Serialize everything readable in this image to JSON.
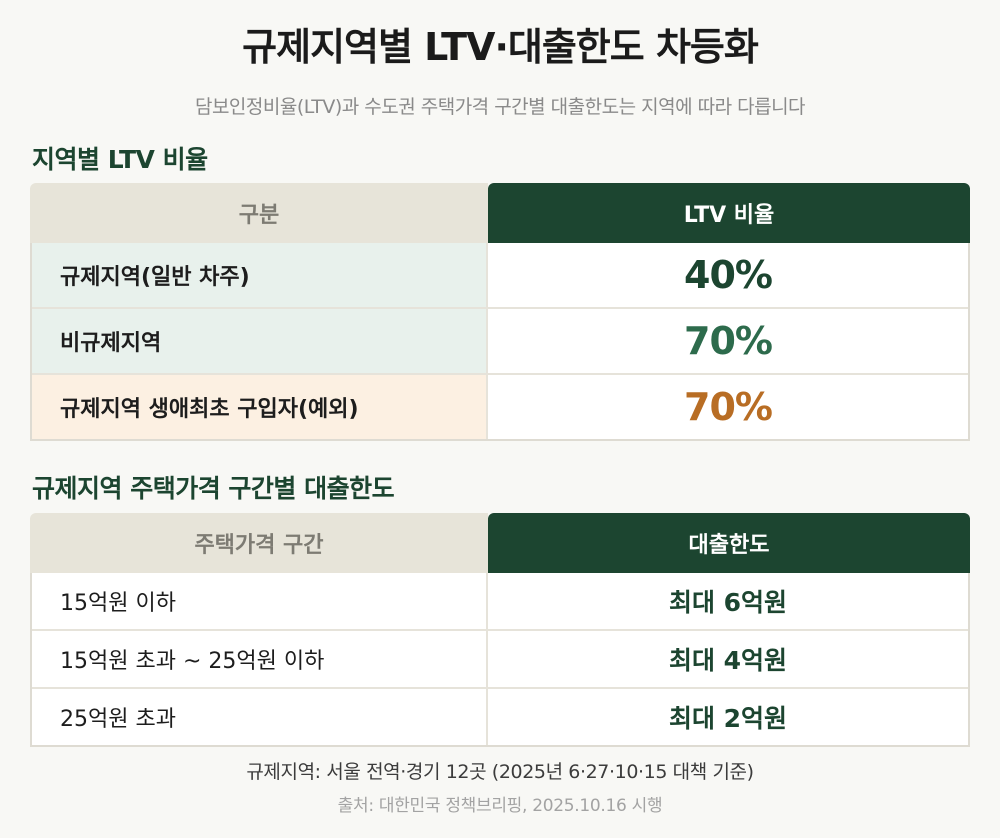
{
  "title": "규제지역별 LTV·대출한도 차등화",
  "subtitle": "담보인정비율(LTV)과 수도권 주택가격 구간별 대출한도는 지역에 따라 다릅니다",
  "ltv_section": {
    "title": "지역별 LTV 비율",
    "headers": [
      "구분",
      "LTV 비율"
    ],
    "rows": [
      {
        "label": "규제지역(일반 차주)",
        "value": "40%"
      },
      {
        "label": "비규제지역",
        "value": "70%"
      },
      {
        "label": "규제지역 생애최초 구입자(예외)",
        "value": "70%"
      }
    ]
  },
  "limit_section": {
    "title": "규제지역 주택가격 구간별 대출한도",
    "headers": [
      "주택가격 구간",
      "대출한도"
    ],
    "rows": [
      {
        "label": "15억원 이하",
        "value": "최대 6억원"
      },
      {
        "label": "15억원 초과 ~ 25억원 이하",
        "value": "최대 4억원"
      },
      {
        "label": "25억원 초과",
        "value": "최대 2억원"
      }
    ]
  },
  "note": "규제지역: 서울 전역·경기 12곳 (2025년 6·27·10·15 대책 기준)",
  "source": "출처: 대한민국 정책브리핑, 2025.10.16 시행",
  "colors": {
    "accent_green": "#1c4530",
    "mid_green": "#2d6b4c",
    "orange": "#b86d24",
    "header_beige": "#e7e4d9"
  }
}
